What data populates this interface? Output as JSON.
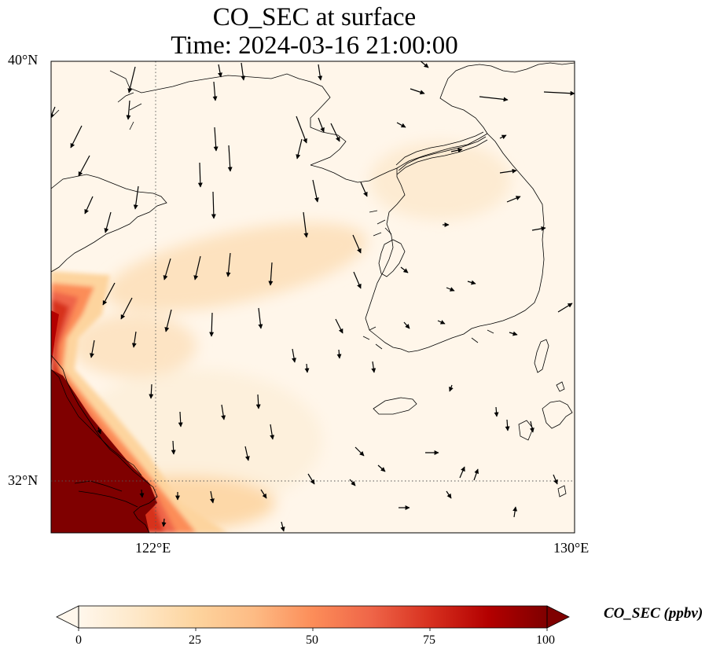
{
  "title": {
    "line1": "CO_SEC at surface",
    "line2": "Time: 2024-03-16 21:00:00"
  },
  "axes": {
    "lat_labels": [
      "40°N",
      "32°N"
    ],
    "lon_labels": [
      "122°E",
      "130°E"
    ]
  },
  "colorbar": {
    "label": "CO_SEC (ppbv)",
    "ticks": [
      "0",
      "25",
      "50",
      "75",
      "100"
    ],
    "range": [
      0,
      100
    ],
    "colormap": "OrRd",
    "extend": "both",
    "colors": [
      "#fff7ec",
      "#fee8c8",
      "#fdd49e",
      "#fdbb84",
      "#fc8d59",
      "#ef6548",
      "#d7301f",
      "#b30000",
      "#7f0000"
    ]
  },
  "map": {
    "extent_lon": [
      120,
      130
    ],
    "extent_lat": [
      31,
      40
    ],
    "gridlines": {
      "lon": [
        122
      ],
      "lat": [
        32
      ],
      "style": "dotted"
    },
    "features": [
      "coastlines",
      "country-borders"
    ],
    "overlay": "wind-vectors",
    "high_concentration_region": "southwest corner near 120–122°E, 31–34°N"
  }
}
